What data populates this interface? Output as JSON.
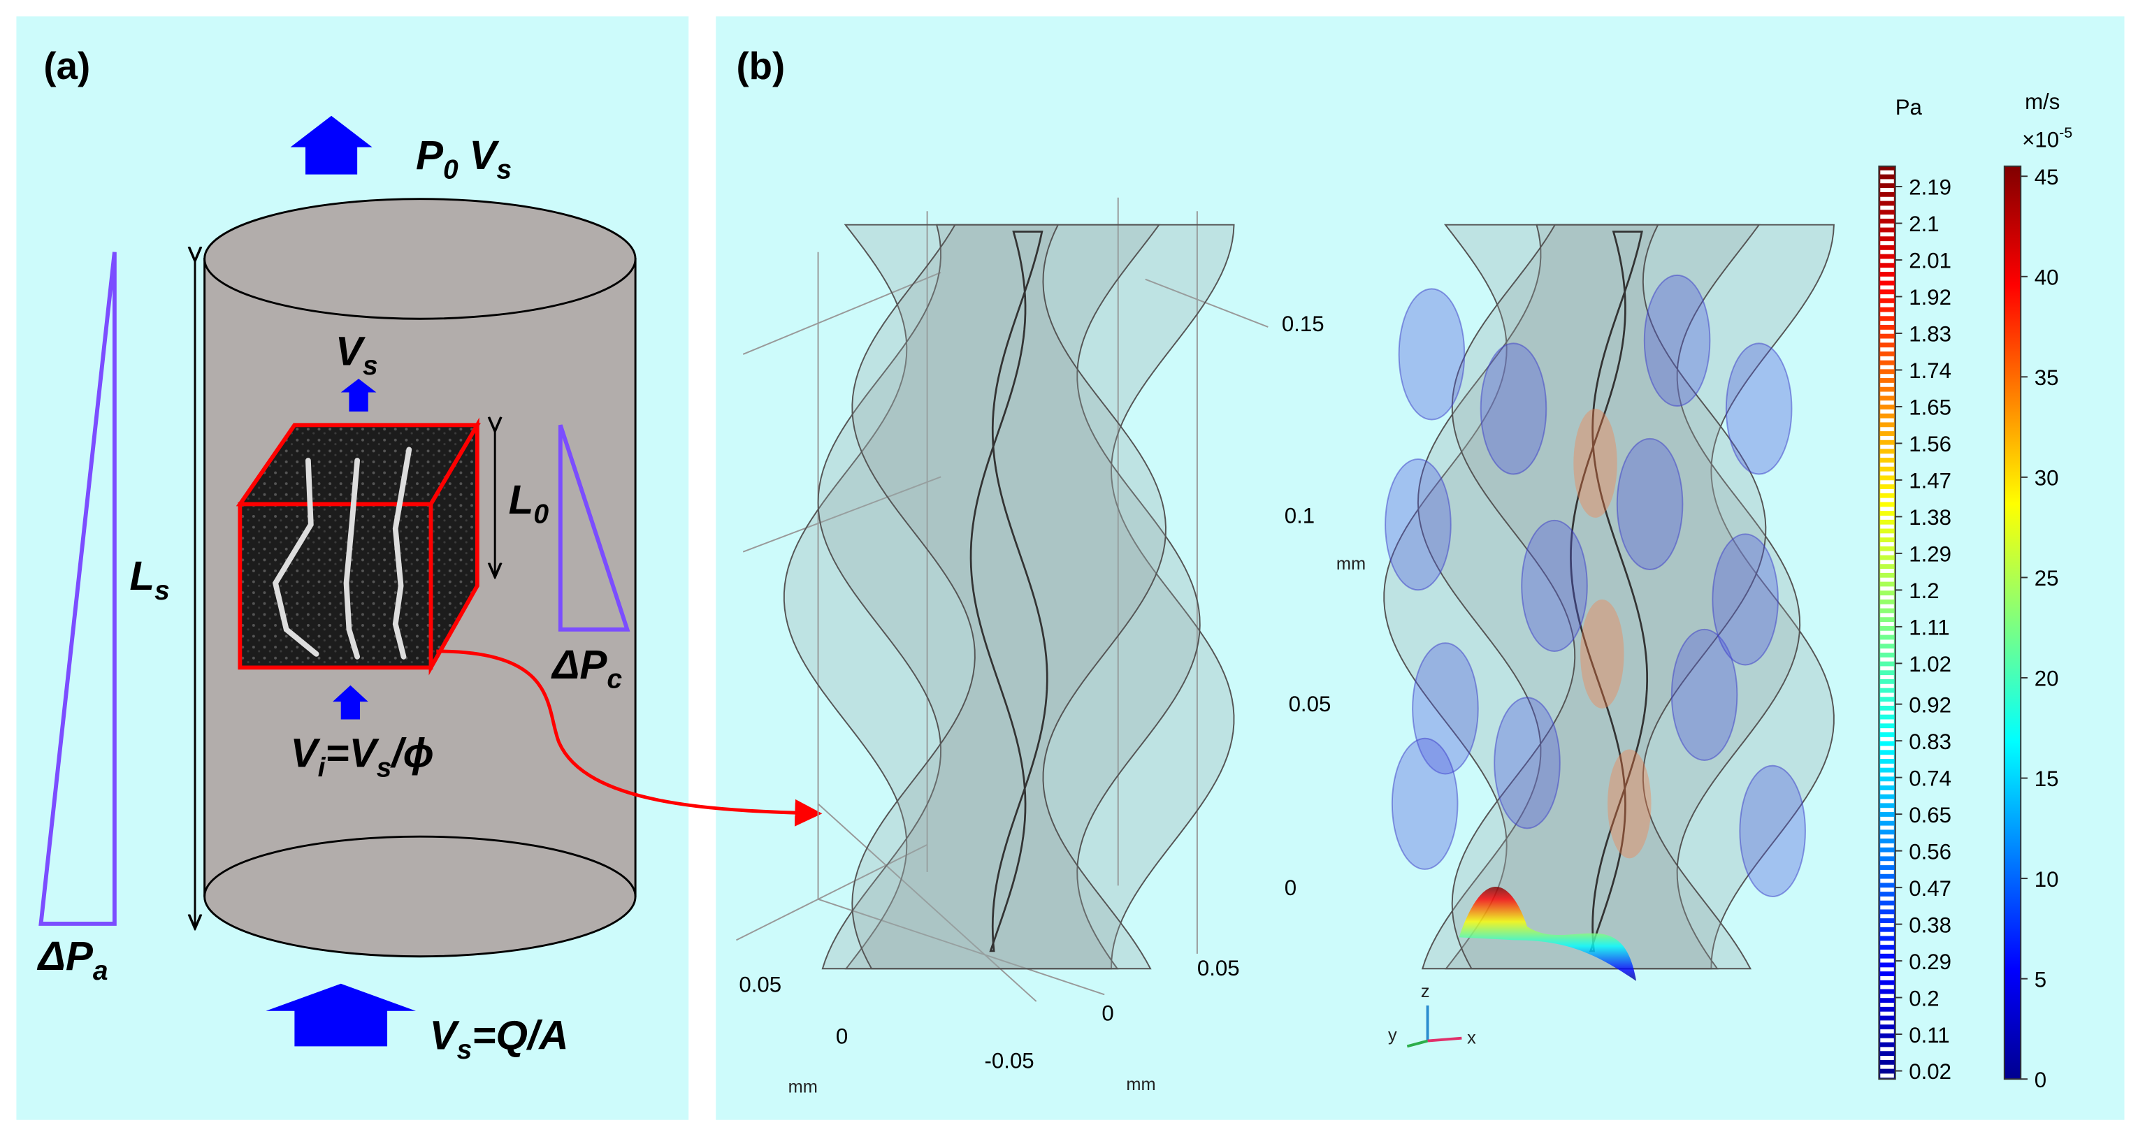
{
  "panel_a": {
    "label": "(a)",
    "top_flow": {
      "p": "P",
      "p_sub": "0",
      "v": "V",
      "v_sub": "s"
    },
    "sample_length": {
      "l": "L",
      "l_sub": "s"
    },
    "cube_velocity": {
      "v": "V",
      "v_sub": "s"
    },
    "cube_length": {
      "l": "L",
      "l_sub": "0"
    },
    "pressure_drop_cube": {
      "d": "ΔP",
      "d_sub": "c"
    },
    "interstitial_velocity": {
      "v": "V",
      "v_sub": "i",
      "eq": "=V",
      "eq_sub": "s",
      "rest": "/ϕ"
    },
    "pressure_drop_sample": {
      "d": "ΔP",
      "d_sub": "a"
    },
    "inlet_flow": {
      "v": "V",
      "v_sub": "s",
      "rest": "=Q/A"
    }
  },
  "panel_b": {
    "label": "(b)",
    "z_ticks": [
      0.15,
      0.1,
      0.05,
      0
    ],
    "z_unit": "mm",
    "y_ticks": [
      0.05,
      0,
      -0.05
    ],
    "y_unit": "mm",
    "x_ticks": [
      0,
      0.05
    ],
    "x_unit": "mm",
    "triad": {
      "x": "x",
      "y": "y",
      "z": "z"
    },
    "pressure_colorbar": {
      "unit": "Pa",
      "lim": [
        0,
        2.24
      ],
      "ticks": [
        2.19,
        2.1,
        2.01,
        1.92,
        1.83,
        1.74,
        1.65,
        1.56,
        1.47,
        1.38,
        1.29,
        1.2,
        1.11,
        1.02,
        0.92,
        0.83,
        0.74,
        0.65,
        0.56,
        0.47,
        0.38,
        0.29,
        0.2,
        0.11,
        0.02
      ]
    },
    "velocity_colorbar": {
      "unit": "m/s",
      "multiplier": "×10",
      "exponent": "-5",
      "lim": [
        0,
        45.5
      ],
      "ticks": [
        45,
        40,
        35,
        30,
        25,
        20,
        15,
        10,
        5,
        0
      ]
    }
  }
}
